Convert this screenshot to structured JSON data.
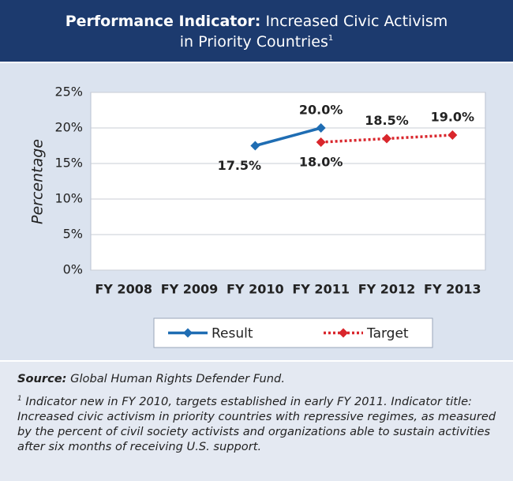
{
  "chart_data": {
    "type": "line",
    "title_prefix": "Performance Indicator:",
    "title_line1": "Increased Civic Activism",
    "title_line2": "in Priority Countries",
    "title_note": "1",
    "y_label": "Percentage",
    "categories": [
      "FY 2008",
      "FY 2009",
      "FY 2010",
      "FY 2011",
      "FY 2012",
      "FY 2013"
    ],
    "series": [
      {
        "name": "Result",
        "color": "#1f6db3",
        "dashed": false,
        "values": [
          null,
          null,
          17.5,
          20.0,
          null,
          null
        ],
        "value_labels": [
          null,
          null,
          "17.5%",
          "20.0%",
          null,
          null
        ]
      },
      {
        "name": "Target",
        "color": "#d9262c",
        "dashed": true,
        "values": [
          null,
          null,
          null,
          18.0,
          18.5,
          19.0
        ],
        "value_labels": [
          null,
          null,
          null,
          "18.0%",
          "18.5%",
          "19.0%"
        ]
      }
    ],
    "ylim": [
      0,
      25
    ],
    "yticks": [
      {
        "value": 0,
        "label": "0%"
      },
      {
        "value": 5,
        "label": "5%"
      },
      {
        "value": 10,
        "label": "10%"
      },
      {
        "value": 15,
        "label": "15%"
      },
      {
        "value": 20,
        "label": "20%"
      },
      {
        "value": 25,
        "label": "25%"
      }
    ],
    "grid": true,
    "legend": "bottom",
    "source_label": "Source:",
    "source": "Global Human Rights Defender Fund.",
    "footnote_mark": "1",
    "footnote": "Indicator new in FY 2010, targets established in early FY 2011. Indicator title: Increased civic activism in priority countries with repressive regimes, as measured by the percent of civil society activists and organizations able to sustain activities after six months of receiving U.S. support."
  }
}
